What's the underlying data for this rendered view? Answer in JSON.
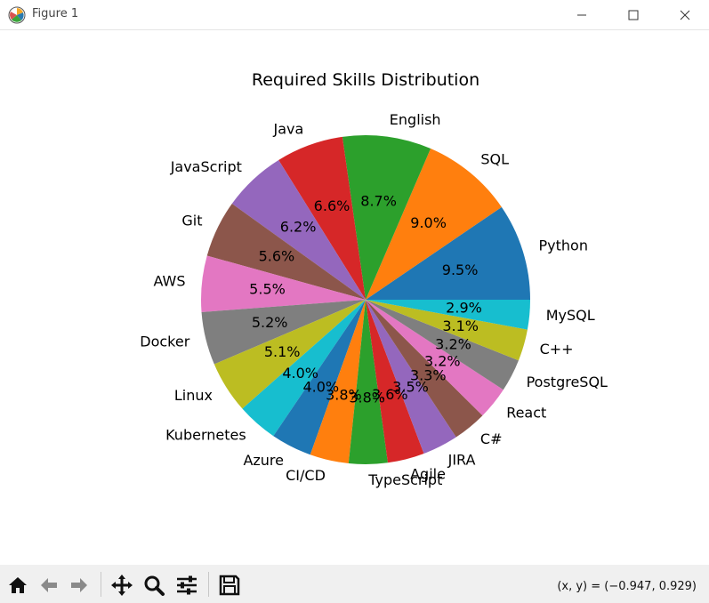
{
  "window": {
    "title": "Figure 1"
  },
  "toolbar": {
    "buttons": [
      "home-icon",
      "back-icon",
      "forward-icon",
      "pan-icon",
      "zoom-icon",
      "configure-subplots-icon",
      "save-icon"
    ],
    "coords_text": "(x, y) = (−0.947, 0.929)"
  },
  "chart_data": {
    "type": "pie",
    "title": "Required Skills Distribution",
    "start_angle_deg": 0,
    "direction": "counterclockwise",
    "slices": [
      {
        "label": "Python",
        "pct_label": "9.5%",
        "value": 9.5,
        "color": "#1f77b4"
      },
      {
        "label": "SQL",
        "pct_label": "9.0%",
        "value": 9.0,
        "color": "#ff7f0e"
      },
      {
        "label": "English",
        "pct_label": "8.7%",
        "value": 8.7,
        "color": "#2ca02c"
      },
      {
        "label": "Java",
        "pct_label": "6.6%",
        "value": 6.6,
        "color": "#d62728"
      },
      {
        "label": "JavaScript",
        "pct_label": "6.2%",
        "value": 6.2,
        "color": "#9467bd"
      },
      {
        "label": "Git",
        "pct_label": "5.6%",
        "value": 5.6,
        "color": "#8c564b"
      },
      {
        "label": "AWS",
        "pct_label": "5.5%",
        "value": 5.5,
        "color": "#e377c2"
      },
      {
        "label": "Docker",
        "pct_label": "5.2%",
        "value": 5.2,
        "color": "#7f7f7f"
      },
      {
        "label": "Linux",
        "pct_label": "5.1%",
        "value": 5.1,
        "color": "#bcbd22"
      },
      {
        "label": "Kubernetes",
        "pct_label": "4.0%",
        "value": 4.0,
        "color": "#17becf"
      },
      {
        "label": "Azure",
        "pct_label": "4.0%",
        "value": 4.0,
        "color": "#1f77b4"
      },
      {
        "label": "CI/CD",
        "pct_label": "3.8%",
        "value": 3.8,
        "color": "#ff7f0e"
      },
      {
        "label": "TypeScript",
        "pct_label": "3.8%",
        "value": 3.8,
        "color": "#2ca02c"
      },
      {
        "label": "Agile",
        "pct_label": "3.6%",
        "value": 3.6,
        "color": "#d62728"
      },
      {
        "label": "JIRA",
        "pct_label": "3.5%",
        "value": 3.5,
        "color": "#9467bd"
      },
      {
        "label": "C#",
        "pct_label": "3.3%",
        "value": 3.3,
        "color": "#8c564b"
      },
      {
        "label": "React",
        "pct_label": "3.2%",
        "value": 3.2,
        "color": "#e377c2"
      },
      {
        "label": "PostgreSQL",
        "pct_label": "3.2%",
        "value": 3.2,
        "color": "#7f7f7f"
      },
      {
        "label": "C++",
        "pct_label": "3.1%",
        "value": 3.1,
        "color": "#bcbd22"
      },
      {
        "label": "MySQL",
        "pct_label": "2.9%",
        "value": 2.9,
        "color": "#17becf"
      }
    ]
  }
}
